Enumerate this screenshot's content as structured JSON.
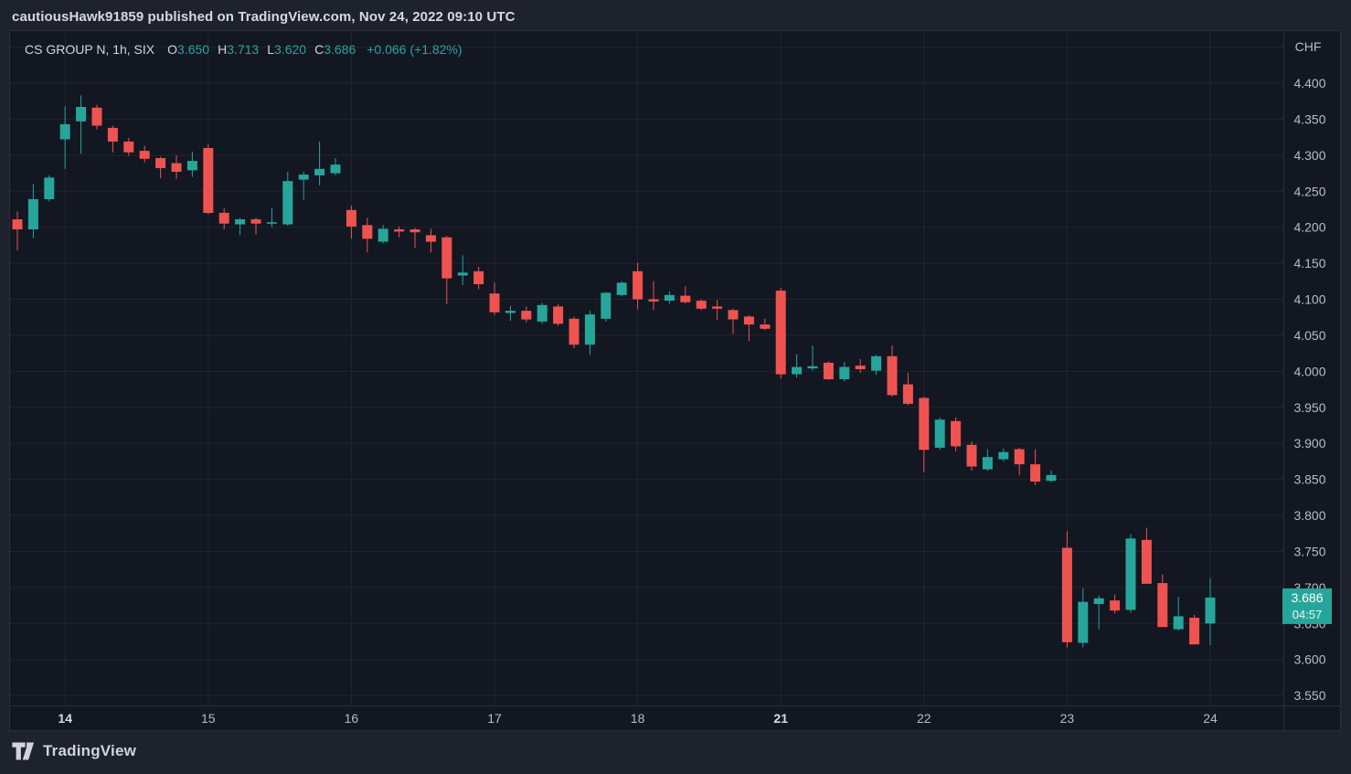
{
  "header": {
    "attribution": "cautiousHawk91859 published on TradingView.com, Nov 24, 2022 09:10 UTC"
  },
  "legend": {
    "symbol": "CS GROUP N, 1h, SIX",
    "ohlc": [
      {
        "label": "O",
        "value": "3.650"
      },
      {
        "label": "H",
        "value": "3.713"
      },
      {
        "label": "L",
        "value": "3.620"
      },
      {
        "label": "C",
        "value": "3.686"
      }
    ],
    "change": "+0.066 (+1.82%)"
  },
  "price_axis": {
    "currency": "CHF",
    "tick_step": 0.05,
    "ticks": [
      "4.400",
      "4.350",
      "4.300",
      "4.250",
      "4.200",
      "4.150",
      "4.100",
      "4.050",
      "4.000",
      "3.950",
      "3.900",
      "3.850",
      "3.800",
      "3.750",
      "3.700",
      "3.650",
      "3.600",
      "3.550"
    ],
    "last_price_label": {
      "price": "3.686",
      "countdown": "04:57"
    }
  },
  "time_axis": {
    "ticks": [
      {
        "label": "14",
        "index": 3,
        "bold": true
      },
      {
        "label": "15",
        "index": 12,
        "bold": false
      },
      {
        "label": "16",
        "index": 21,
        "bold": false
      },
      {
        "label": "17",
        "index": 30,
        "bold": false
      },
      {
        "label": "18",
        "index": 39,
        "bold": false
      },
      {
        "label": "21",
        "index": 48,
        "bold": true
      },
      {
        "label": "22",
        "index": 57,
        "bold": false
      },
      {
        "label": "23",
        "index": 66,
        "bold": false
      },
      {
        "label": "24",
        "index": 75,
        "bold": false
      }
    ]
  },
  "footer": {
    "brand": "TradingView"
  },
  "colors": {
    "up": "#26a69a",
    "down": "#ef5350",
    "plot_bg": "#131722",
    "page_bg": "#1e222d",
    "grid": "rgba(178,181,190,0.09)",
    "border": "#2a2e39",
    "axis_text": "#b9bcc5",
    "axis_text_bold": "#d8dbe0",
    "last_price_bg": "#26a69a",
    "last_price_text": "#ffffff"
  },
  "chart_data": {
    "type": "candlestick",
    "title": "CS GROUP N",
    "interval": "1h",
    "exchange": "SIX",
    "currency": "CHF",
    "ohlc_current": {
      "open": 3.65,
      "high": 3.713,
      "low": 3.62,
      "close": 3.686,
      "change": 0.066,
      "change_pct": 1.82
    },
    "axis_price_range": [
      3.55,
      4.4
    ],
    "day_labels": [
      "14",
      "15",
      "16",
      "17",
      "18",
      "21",
      "22",
      "23",
      "24"
    ],
    "candles": [
      [
        4.211,
        4.222,
        4.168,
        4.197
      ],
      [
        4.197,
        4.26,
        4.185,
        4.239
      ],
      [
        4.239,
        4.272,
        4.236,
        4.269
      ],
      [
        4.322,
        4.368,
        4.281,
        4.343
      ],
      [
        4.347,
        4.383,
        4.302,
        4.367
      ],
      [
        4.366,
        4.37,
        4.336,
        4.341
      ],
      [
        4.338,
        4.341,
        4.304,
        4.319
      ],
      [
        4.319,
        4.324,
        4.299,
        4.304
      ],
      [
        4.306,
        4.313,
        4.29,
        4.295
      ],
      [
        4.296,
        4.298,
        4.268,
        4.282
      ],
      [
        4.289,
        4.3,
        4.267,
        4.277
      ],
      [
        4.279,
        4.305,
        4.27,
        4.292
      ],
      [
        4.31,
        4.315,
        4.218,
        4.22
      ],
      [
        4.22,
        4.227,
        4.197,
        4.205
      ],
      [
        4.204,
        4.213,
        4.189,
        4.211
      ],
      [
        4.211,
        4.213,
        4.19,
        4.205
      ],
      [
        4.205,
        4.227,
        4.2,
        4.207
      ],
      [
        4.204,
        4.277,
        4.202,
        4.264
      ],
      [
        4.266,
        4.277,
        4.238,
        4.273
      ],
      [
        4.272,
        4.319,
        4.258,
        4.281
      ],
      [
        4.275,
        4.296,
        4.272,
        4.287
      ],
      [
        4.224,
        4.23,
        4.184,
        4.201
      ],
      [
        4.203,
        4.213,
        4.165,
        4.184
      ],
      [
        4.18,
        4.203,
        4.178,
        4.198
      ],
      [
        4.197,
        4.201,
        4.186,
        4.194
      ],
      [
        4.197,
        4.199,
        4.171,
        4.193
      ],
      [
        4.189,
        4.198,
        4.165,
        4.18
      ],
      [
        4.186,
        4.188,
        4.093,
        4.129
      ],
      [
        4.133,
        4.161,
        4.12,
        4.137
      ],
      [
        4.139,
        4.145,
        4.114,
        4.121
      ],
      [
        4.108,
        4.123,
        4.078,
        4.082
      ],
      [
        4.081,
        4.091,
        4.07,
        4.084
      ],
      [
        4.084,
        4.09,
        4.068,
        4.072
      ],
      [
        4.069,
        4.095,
        4.066,
        4.092
      ],
      [
        4.09,
        4.093,
        4.063,
        4.066
      ],
      [
        4.073,
        4.076,
        4.032,
        4.037
      ],
      [
        4.037,
        4.084,
        4.023,
        4.079
      ],
      [
        4.073,
        4.11,
        4.069,
        4.109
      ],
      [
        4.106,
        4.125,
        4.104,
        4.123
      ],
      [
        4.139,
        4.151,
        4.086,
        4.1
      ],
      [
        4.1,
        4.125,
        4.085,
        4.097
      ],
      [
        4.098,
        4.111,
        4.094,
        4.106
      ],
      [
        4.105,
        4.118,
        4.094,
        4.096
      ],
      [
        4.098,
        4.1,
        4.085,
        4.087
      ],
      [
        4.09,
        4.099,
        4.071,
        4.087
      ],
      [
        4.085,
        4.087,
        4.052,
        4.072
      ],
      [
        4.076,
        4.078,
        4.042,
        4.065
      ],
      [
        4.065,
        4.073,
        4.057,
        4.059
      ],
      [
        4.112,
        4.116,
        3.99,
        3.996
      ],
      [
        3.996,
        4.024,
        3.991,
        4.006
      ],
      [
        4.004,
        4.036,
        4.001,
        4.007
      ],
      [
        4.012,
        4.014,
        3.988,
        3.989
      ],
      [
        3.989,
        4.013,
        3.986,
        4.006
      ],
      [
        4.008,
        4.017,
        3.998,
        4.003
      ],
      [
        4.001,
        4.023,
        3.995,
        4.021
      ],
      [
        4.021,
        4.036,
        3.965,
        3.967
      ],
      [
        3.982,
        3.998,
        3.953,
        3.955
      ],
      [
        3.963,
        3.965,
        3.86,
        3.891
      ],
      [
        3.894,
        3.936,
        3.891,
        3.933
      ],
      [
        3.931,
        3.936,
        3.889,
        3.896
      ],
      [
        3.898,
        3.903,
        3.862,
        3.868
      ],
      [
        3.864,
        3.892,
        3.862,
        3.881
      ],
      [
        3.878,
        3.893,
        3.875,
        3.888
      ],
      [
        3.892,
        3.894,
        3.856,
        3.871
      ],
      [
        3.871,
        3.892,
        3.842,
        3.847
      ],
      [
        3.848,
        3.862,
        3.846,
        3.856
      ],
      [
        3.755,
        3.778,
        3.617,
        3.624
      ],
      [
        3.623,
        3.699,
        3.617,
        3.68
      ],
      [
        3.677,
        3.689,
        3.642,
        3.685
      ],
      [
        3.682,
        3.69,
        3.664,
        3.668
      ],
      [
        3.669,
        3.774,
        3.665,
        3.768
      ],
      [
        3.766,
        3.783,
        3.705,
        3.705
      ],
      [
        3.706,
        3.718,
        3.645,
        3.645
      ],
      [
        3.642,
        3.687,
        3.64,
        3.66
      ],
      [
        3.658,
        3.662,
        3.621,
        3.621
      ],
      [
        3.65,
        3.713,
        3.62,
        3.686
      ]
    ]
  }
}
